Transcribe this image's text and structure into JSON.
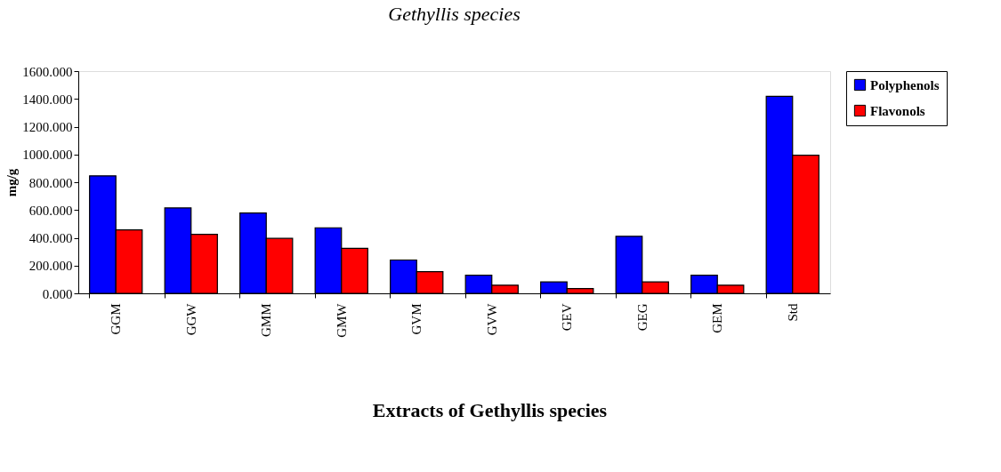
{
  "chart_data": {
    "type": "bar",
    "title": "Gethyllis species",
    "ylabel": "mg/g",
    "annotations": [
      "Extracts of Gethyllis species"
    ],
    "categories": [
      "GGM",
      "GGW",
      "GMM",
      "GMW",
      "GVM",
      "GVW",
      "GEV",
      "GEG",
      "GEM",
      "Std"
    ],
    "series": [
      {
        "name": "Polyphenols",
        "color": "#0000ff",
        "values": [
          846,
          615,
          579,
          472,
          240,
          131,
          82,
          411,
          131,
          1419
        ]
      },
      {
        "name": "Flavonols",
        "color": "#ff0000",
        "values": [
          457,
          425,
          396,
          324,
          156,
          59,
          34,
          82,
          59,
          994
        ]
      }
    ],
    "ylim": [
      0,
      1600
    ],
    "yticks": [
      {
        "value": 0,
        "label": "0.000"
      },
      {
        "value": 200,
        "label": "200.000"
      },
      {
        "value": 400,
        "label": "400.000"
      },
      {
        "value": 600,
        "label": "600.000"
      },
      {
        "value": 800,
        "label": "800.000"
      },
      {
        "value": 1000,
        "label": "1000.000"
      },
      {
        "value": 1200,
        "label": "1200.000"
      },
      {
        "value": 1400,
        "label": "1400.000"
      },
      {
        "value": 1600,
        "label": "1600.000"
      }
    ],
    "grid": false,
    "legend": "right"
  }
}
